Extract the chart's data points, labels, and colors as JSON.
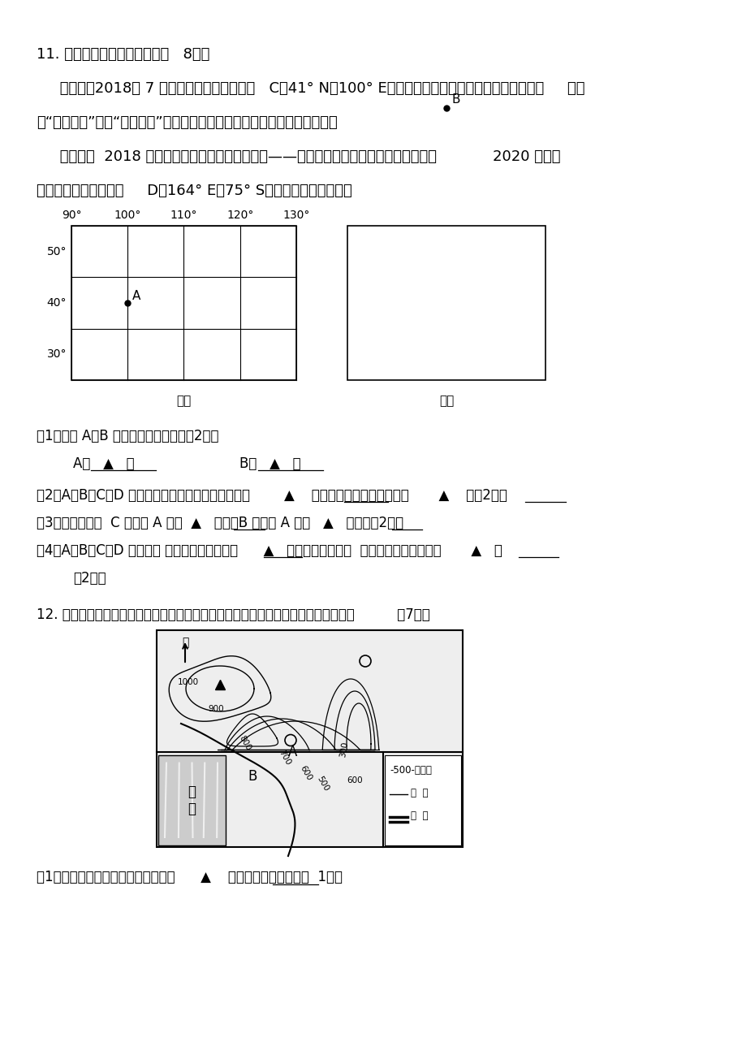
{
  "bg_color": "#ffffff",
  "title_text": "11. 阅读材料，回答下列问题（   8分）",
  "para1": "     资料一：2018年 7 月，在酒泉卫星发射中心   C（41° N，100° E），我国成功发射巴基斯坦遥感卫星一号     （简",
  "para2": "称“巴遥一号”）。“巴遥一号”交付后，将成巴基斯坦第一颤光学遥感卫星。",
  "para3": "     资料二：  2018 年，我国第五个南极科学考察站——恩克斯堡岛新站选址奠基完成，预计            2020 年建成",
  "para4": "使用。恩克斯堡岛位于     D（164° E，75° S）附近的罗斯海海域。",
  "q1_text": "（1）写出 A、B 两点的经纬度坐标。（2分）",
  "q2_text": "（2）A、B、C、D 四点中，所在纬线长度最长的点是        ▲    ，所在纬线长度最短的点是       ▲    。（2分）",
  "q3_text": "（3）判断方向：  C 点位于 A 点的  ▲   方向，B 点位于 A 点的   ▲   方向。（2分）",
  "q4_text": "（4）A、B、C、D 四点中， 属于东半球的点有：      ▲   ，既属于南半球，  又属于高纬度的点有：       ▲   。",
  "q4_sub": "（2分）",
  "q12_text": "12. 恩施某中学赴大峡谷开展野外考察活动，读大峡谷局域等高线图，回答下列问题：          （7分）",
  "q12_sub": "（1）读图，判断公路处的海拔高度为      ▲    （写出取値范围）米（  1分）"
}
